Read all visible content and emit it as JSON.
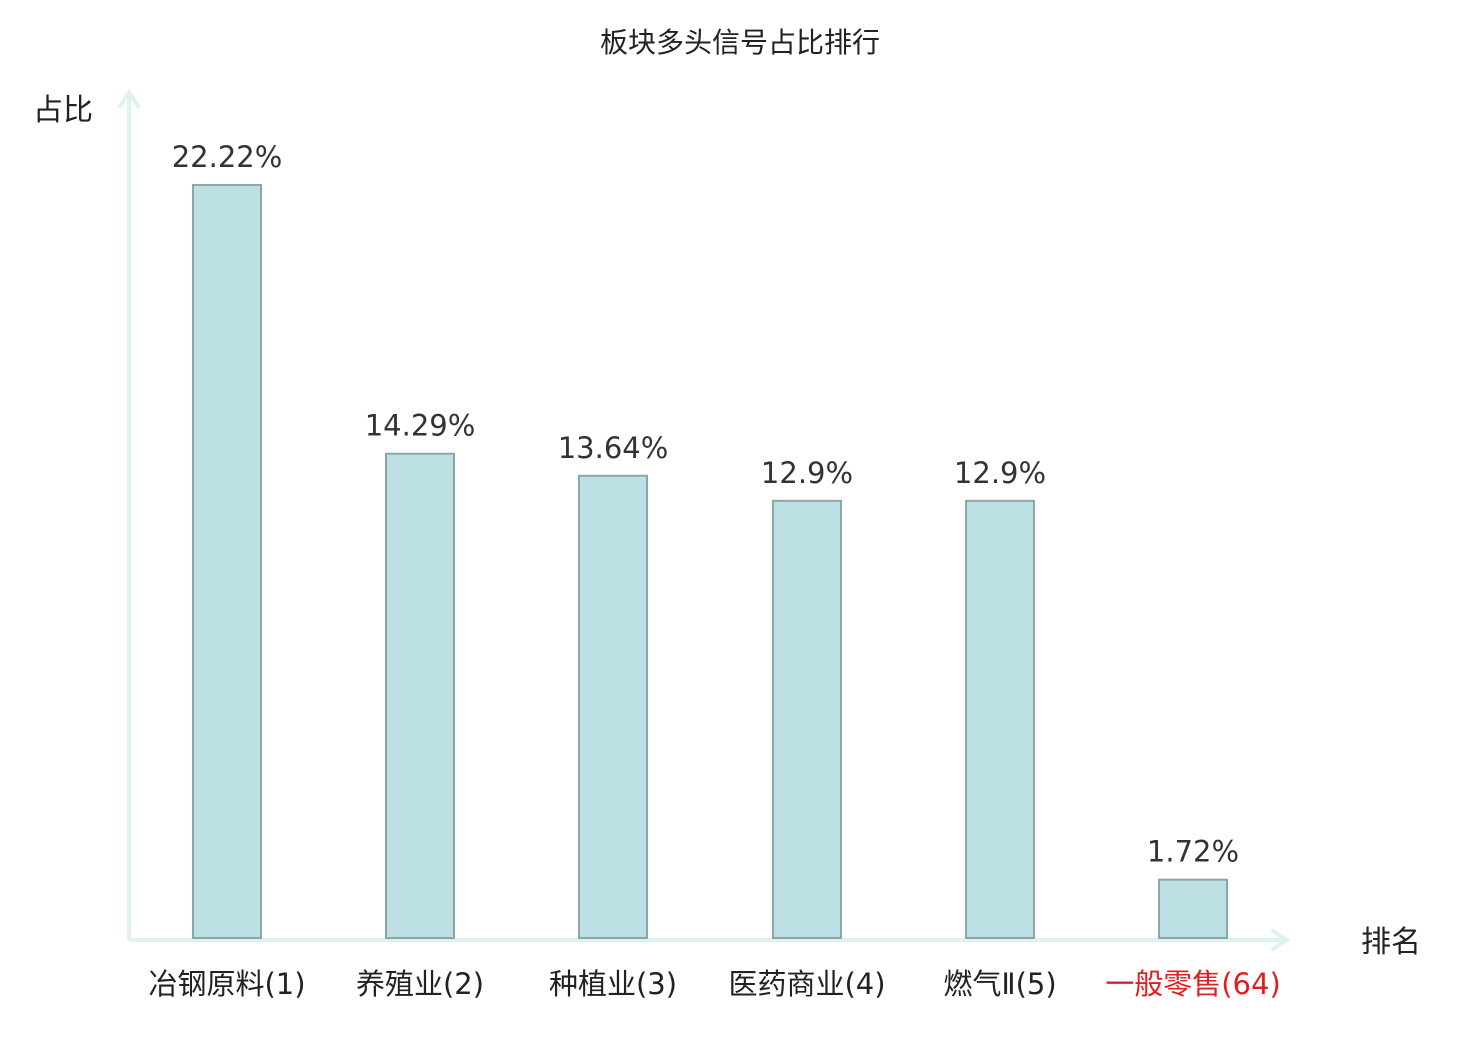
{
  "chart_data": {
    "type": "bar",
    "title": "板块多头信号占比排行",
    "ylabel": "占比",
    "xlabel": "排名",
    "categories": [
      "冶钢原料(1)",
      "养殖业(2)",
      "种植业(3)",
      "医药商业(4)",
      "燃气Ⅱ(5)",
      "一般零售(64)"
    ],
    "values": [
      22.22,
      14.29,
      13.64,
      12.9,
      12.9,
      1.72
    ],
    "data_labels": [
      "22.22%",
      "14.29%",
      "13.64%",
      "12.9%",
      "12.9%",
      "1.72%"
    ],
    "highlight_index": 5,
    "ylim": [
      0,
      22.22
    ],
    "grid": false,
    "legend": "none"
  },
  "colors": {
    "bar_fill": "#bce0e3",
    "bar_stroke": "#8aa7aa",
    "axis": "#dff2ef",
    "text": "#222222",
    "highlight": "#e02020"
  }
}
